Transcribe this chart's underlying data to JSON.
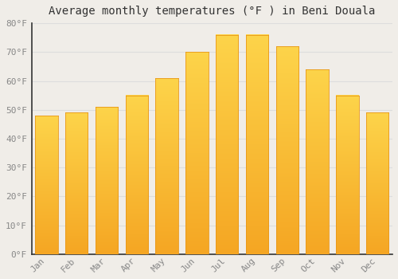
{
  "title": "Average monthly temperatures (°F ) in Beni Douala",
  "months": [
    "Jan",
    "Feb",
    "Mar",
    "Apr",
    "May",
    "Jun",
    "Jul",
    "Aug",
    "Sep",
    "Oct",
    "Nov",
    "Dec"
  ],
  "values": [
    48,
    49,
    51,
    55,
    61,
    70,
    76,
    76,
    72,
    64,
    55,
    49
  ],
  "bar_color_light": "#FDD44A",
  "bar_color_dark": "#F5A623",
  "bar_edge_color": "#E8981A",
  "background_color": "#F0EDE8",
  "grid_color": "#DDDDDD",
  "title_fontsize": 10,
  "tick_fontsize": 8,
  "tick_color": "#888888",
  "ylim": [
    0,
    80
  ],
  "yticks": [
    0,
    10,
    20,
    30,
    40,
    50,
    60,
    70,
    80
  ],
  "ytick_labels": [
    "0°F",
    "10°F",
    "20°F",
    "30°F",
    "40°F",
    "50°F",
    "60°F",
    "70°F",
    "80°F"
  ]
}
